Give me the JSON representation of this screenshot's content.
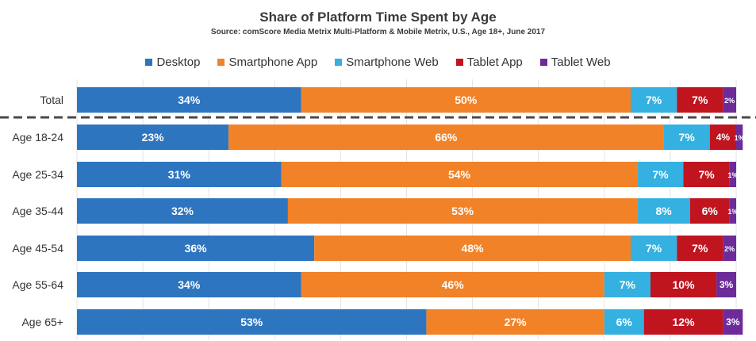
{
  "chart_data": {
    "type": "bar",
    "orientation": "horizontal",
    "stacked": true,
    "percent_stacked": true,
    "title": "Share of Platform Time Spent by Age",
    "subtitle": "Source: comScore Media Metrix Multi-Platform & Mobile Metrix, U.S., Age 18+, June 2017",
    "categories": [
      "Total",
      "Age 18-24",
      "Age 25-34",
      "Age 35-44",
      "Age 45-54",
      "Age 55-64",
      "Age 65+"
    ],
    "series": [
      {
        "name": "Desktop",
        "color": "#2e75c0",
        "values": [
          34,
          23,
          31,
          32,
          36,
          34,
          53
        ],
        "labels": [
          "34%",
          "23%",
          "31%",
          "32%",
          "36%",
          "34%",
          "53%"
        ]
      },
      {
        "name": "Smartphone App",
        "color": "#f28228",
        "values": [
          50,
          66,
          54,
          53,
          48,
          46,
          27
        ],
        "labels": [
          "50%",
          "66%",
          "54%",
          "53%",
          "48%",
          "46%",
          "27%"
        ]
      },
      {
        "name": "Smartphone Web",
        "color": "#34b1e0",
        "values": [
          7,
          7,
          7,
          8,
          7,
          7,
          6
        ],
        "labels": [
          "7%",
          "7%",
          "7%",
          "8%",
          "7%",
          "7%",
          "6%"
        ]
      },
      {
        "name": "Tablet App",
        "color": "#c0141f",
        "values": [
          7,
          4,
          7,
          6,
          7,
          10,
          12
        ],
        "labels": [
          "7%",
          "4%",
          "7%",
          "6%",
          "7%",
          "10%",
          "12%"
        ]
      },
      {
        "name": "Tablet Web",
        "color": "#6d2b9a",
        "values": [
          2,
          1,
          1,
          1,
          2,
          3,
          3
        ],
        "labels": [
          "2%",
          "1%",
          "1%",
          "1%",
          "2%",
          "3%",
          "3%"
        ]
      }
    ],
    "xlim": [
      0,
      100
    ],
    "legend_position": "top",
    "grid": true
  }
}
